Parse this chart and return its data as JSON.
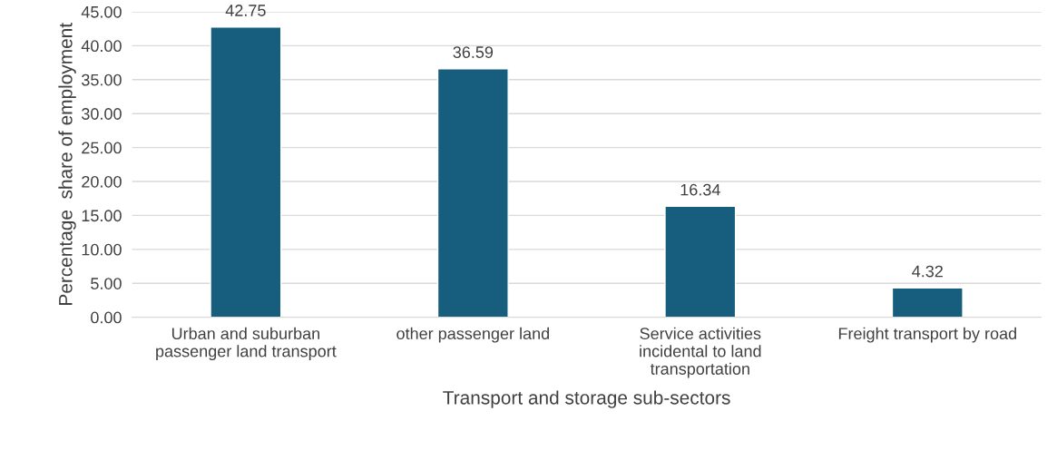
{
  "chart_data": {
    "type": "bar",
    "xlabel": "Transport and storage sub-sectors",
    "ylabel": "Percentage  share of employment",
    "categories": [
      "Urban and suburban passenger land transport",
      "other passenger land",
      "Service activities incidental to land transportation",
      "Freight transport by road"
    ],
    "values": [
      42.75,
      36.59,
      16.34,
      4.32
    ],
    "color": "#175e7e",
    "ylim": [
      0,
      45
    ],
    "yticks": [
      {
        "value": 0,
        "label": "0.00"
      },
      {
        "value": 5,
        "label": "5.00"
      },
      {
        "value": 10,
        "label": "10.00"
      },
      {
        "value": 15,
        "label": "15.00"
      },
      {
        "value": 20,
        "label": "20.00"
      },
      {
        "value": 25,
        "label": "25.00"
      },
      {
        "value": 30,
        "label": "30.00"
      },
      {
        "value": 35,
        "label": "35.00"
      },
      {
        "value": 40,
        "label": "40.00"
      },
      {
        "value": 45,
        "label": "45.00"
      }
    ],
    "grid": "y",
    "data_labels": true
  }
}
